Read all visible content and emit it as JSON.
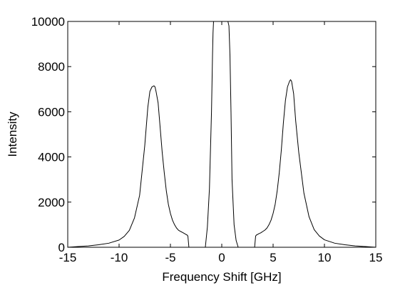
{
  "chart_data": {
    "type": "line",
    "title": "",
    "xlabel": "Frequency Shift [GHz]",
    "ylabel": "Intensity",
    "xlim": [
      -15,
      15
    ],
    "ylim": [
      0,
      10000
    ],
    "x_ticks": [
      -15,
      -10,
      -5,
      0,
      5,
      10,
      15
    ],
    "y_ticks": [
      0,
      2000,
      4000,
      6000,
      8000,
      10000
    ],
    "grid": false,
    "line_color": "#000000",
    "series": [
      {
        "x": [
          -15,
          -14,
          -13,
          -12,
          -11,
          -10,
          -9.5,
          -9,
          -8.5,
          -8,
          -7.5,
          -7.2,
          -7,
          -6.8,
          -6.6,
          -6.5,
          -6.4,
          -6.2,
          -6,
          -5.8,
          -5.6,
          -5.4,
          -5.2,
          -5,
          -4.8,
          -4.6,
          -4.4,
          -4.2,
          -4,
          -3.8,
          -3.6,
          -3.5,
          -3.4,
          -3.3,
          -3.2,
          -3,
          -2.5,
          -2,
          -1.6,
          -1.4,
          -1.2,
          -1.0,
          -0.9,
          -0.85,
          -0.8,
          0.6,
          0.7,
          0.8,
          0.9,
          1.0,
          1.2,
          1.4,
          1.6,
          2,
          2.5,
          3,
          3.2,
          3.3,
          3.4,
          3.5,
          3.6,
          3.8,
          4,
          4.2,
          4.4,
          4.6,
          4.8,
          5,
          5.2,
          5.4,
          5.6,
          5.8,
          6,
          6.2,
          6.4,
          6.6,
          6.7,
          6.8,
          7,
          7.2,
          7.5,
          8,
          8.5,
          9,
          9.5,
          10,
          11,
          12,
          13,
          14,
          15
        ],
        "y": [
          0,
          30,
          60,
          110,
          180,
          320,
          480,
          750,
          1300,
          2300,
          4500,
          6200,
          6900,
          7100,
          7150,
          7100,
          6900,
          6400,
          5300,
          4200,
          3300,
          2500,
          1900,
          1500,
          1200,
          1000,
          850,
          750,
          700,
          650,
          600,
          570,
          550,
          500,
          0,
          0,
          0,
          0,
          0,
          900,
          2600,
          6000,
          8500,
          9500,
          10000,
          10000,
          9800,
          8500,
          6000,
          3000,
          1000,
          300,
          0,
          0,
          0,
          0,
          0,
          500,
          550,
          570,
          600,
          640,
          700,
          760,
          850,
          1000,
          1200,
          1500,
          1900,
          2500,
          3300,
          4300,
          5500,
          6500,
          7100,
          7350,
          7420,
          7350,
          6800,
          5600,
          4200,
          2400,
          1350,
          780,
          500,
          330,
          180,
          110,
          60,
          30,
          0
        ]
      }
    ]
  }
}
